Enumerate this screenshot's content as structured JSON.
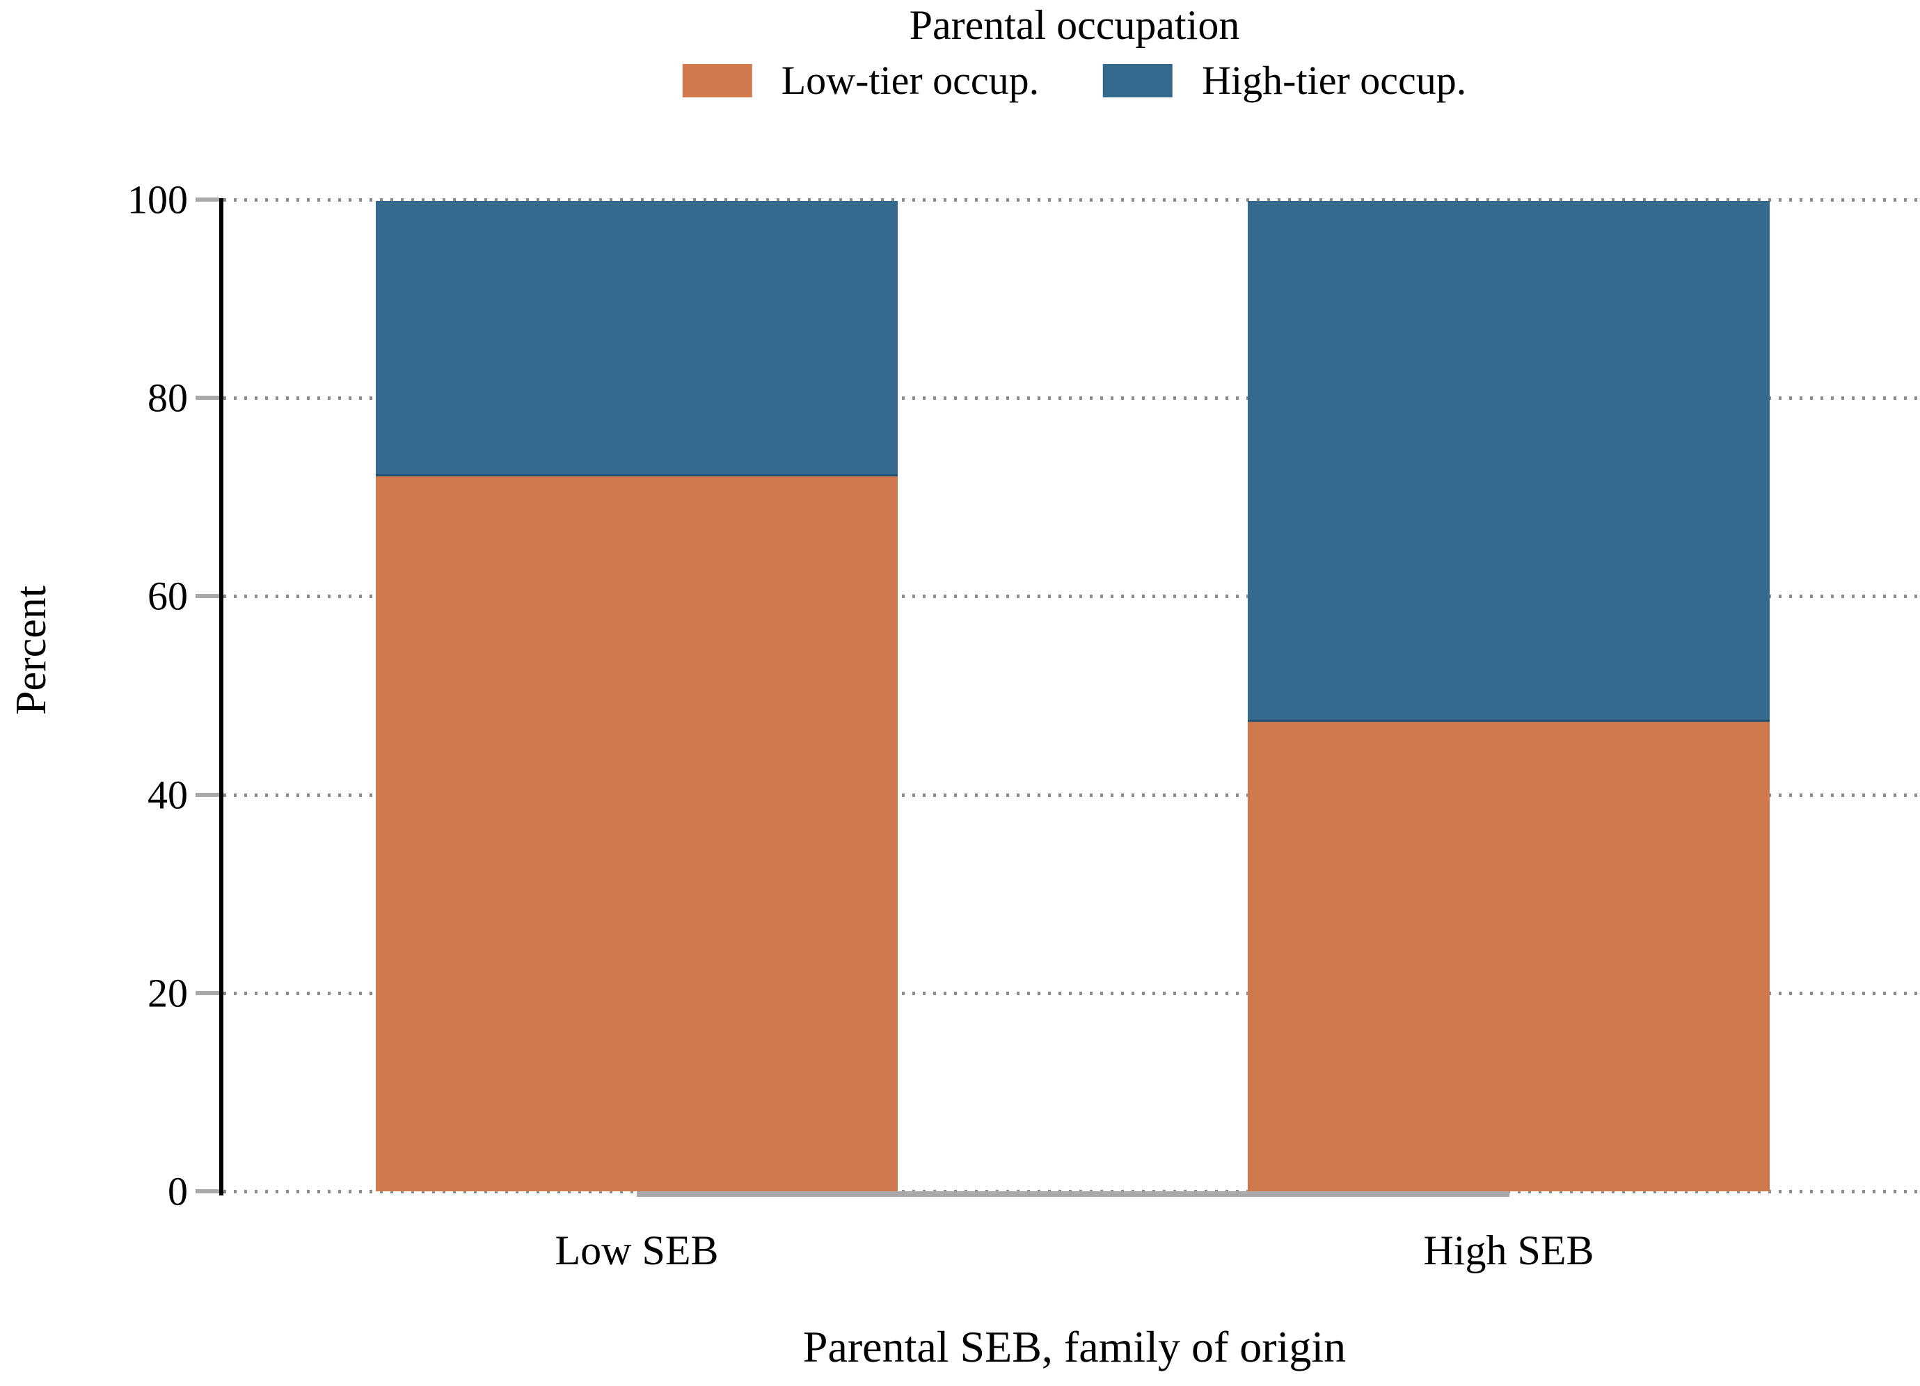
{
  "chart_data": {
    "type": "bar",
    "stacked": true,
    "orientation": "vertical",
    "legend_title": "Parental occupation",
    "legend_position": "top",
    "categories": [
      "Low SEB",
      "High SEB"
    ],
    "series": [
      {
        "name": "Low-tier occup.",
        "color": "#d0784e",
        "values": [
          72.2,
          47.4
        ]
      },
      {
        "name": "High-tier occup.",
        "color": "#35698e",
        "values": [
          27.8,
          52.6
        ]
      }
    ],
    "xlabel": "Parental SEB, family of origin",
    "ylabel": "Percent",
    "ylim": [
      0,
      100
    ],
    "yticks": [
      0,
      20,
      40,
      60,
      80,
      100
    ],
    "grid": "horizontal-dotted",
    "colors": {
      "axis": "#000000",
      "tick": "#a9a9a9",
      "gridline": "#8c8c8c",
      "x_baseline": "#a9a9a9",
      "background": "#ffffff",
      "text": "#000000"
    }
  }
}
